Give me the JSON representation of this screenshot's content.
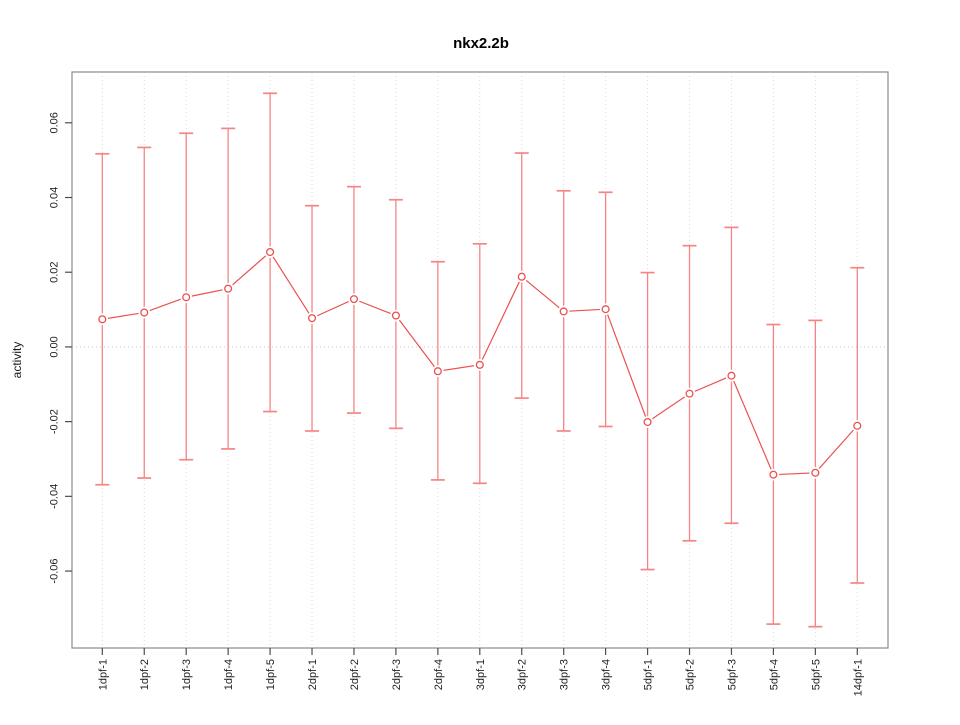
{
  "chart_data": {
    "type": "line",
    "variant": "points-with-error-bars",
    "title": "nkx2.2b",
    "xlabel": "",
    "ylabel": "activity",
    "legend": "none",
    "grid": {
      "vertical_dotted_per_category": true,
      "horizontal_zero_line_dotted": true
    },
    "ylim": [
      -0.0806,
      0.0736
    ],
    "yticks": [
      {
        "value": 0.06,
        "label": "0.06"
      },
      {
        "value": 0.04,
        "label": "0.04"
      },
      {
        "value": 0.02,
        "label": "0.02"
      },
      {
        "value": 0.0,
        "label": "0.00"
      },
      {
        "value": -0.02,
        "label": "-0.02"
      },
      {
        "value": -0.04,
        "label": "-0.04"
      },
      {
        "value": -0.06,
        "label": "-0.06"
      }
    ],
    "categories": [
      "1dpf-1",
      "1dpf-2",
      "1dpf-3",
      "1dpf-4",
      "1dpf-5",
      "2dpf-1",
      "2dpf-2",
      "2dpf-3",
      "2dpf-4",
      "3dpf-1",
      "3dpf-2",
      "3dpf-3",
      "3dpf-4",
      "5dpf-1",
      "5dpf-2",
      "5dpf-3",
      "5dpf-4",
      "5dpf-5",
      "14dpf-1"
    ],
    "series": [
      {
        "name": "nkx2.2b activity",
        "values": [
          0.0074,
          0.0092,
          0.0133,
          0.0156,
          0.0254,
          0.0077,
          0.0128,
          0.0084,
          -0.0065,
          -0.0048,
          0.0188,
          0.0095,
          0.0101,
          -0.0201,
          -0.0125,
          -0.0077,
          -0.0342,
          -0.0337,
          -0.0211
        ],
        "upper": [
          0.0517,
          0.0534,
          0.0572,
          0.0585,
          0.0679,
          0.0378,
          0.0429,
          0.0394,
          0.0228,
          0.0276,
          0.0519,
          0.0418,
          0.0414,
          0.0199,
          0.0271,
          0.032,
          0.006,
          0.0071,
          0.0212
        ],
        "lower": [
          -0.0369,
          -0.0351,
          -0.0302,
          -0.0273,
          -0.0173,
          -0.0225,
          -0.0177,
          -0.0218,
          -0.0356,
          -0.0365,
          -0.0137,
          -0.0225,
          -0.0213,
          -0.0596,
          -0.0519,
          -0.0472,
          -0.0742,
          -0.0749,
          -0.0632
        ]
      }
    ],
    "colors": {
      "series": "#ec4f4f",
      "error_bar": "#f58585",
      "grid": "#d9d9d9",
      "zero_line": "#cccccc",
      "box": "#8c8c8c",
      "tick": "#4d4d4d",
      "text": "#1f1f1f",
      "background": "#ffffff"
    }
  }
}
